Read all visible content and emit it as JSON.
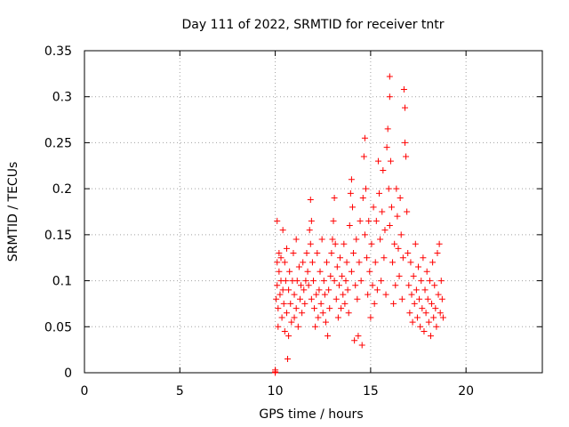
{
  "chart_data": {
    "type": "scatter",
    "title": "Day 111 of 2022, SRMTID for receiver tntr",
    "xlabel": "GPS time / hours",
    "ylabel": "SRMTID / TECUs",
    "xlim": [
      0,
      24
    ],
    "ylim": [
      0,
      0.35
    ],
    "xticks": [
      0,
      5,
      10,
      15,
      20
    ],
    "xtick_labels": [
      "0",
      "5",
      "10",
      "15",
      "20"
    ],
    "yticks": [
      0,
      0.05,
      0.1,
      0.15,
      0.2,
      0.25,
      0.3,
      0.35
    ],
    "ytick_labels": [
      "0",
      "0.05",
      "0.1",
      "0.15",
      "0.2",
      "0.25",
      "0.3",
      "0.35"
    ],
    "grid": true,
    "marker": "+",
    "color": "#ff0000",
    "series": [
      {
        "name": "SRMTID",
        "points": [
          [
            10.0,
            0.001
          ],
          [
            10.0,
            0.003
          ],
          [
            10.0,
            0.0
          ],
          [
            10.05,
            0.08
          ],
          [
            10.1,
            0.165
          ],
          [
            10.1,
            0.12
          ],
          [
            10.1,
            0.095
          ],
          [
            10.15,
            0.07
          ],
          [
            10.15,
            0.05
          ],
          [
            10.2,
            0.13
          ],
          [
            10.2,
            0.11
          ],
          [
            10.25,
            0.085
          ],
          [
            10.3,
            0.125
          ],
          [
            10.3,
            0.1
          ],
          [
            10.35,
            0.06
          ],
          [
            10.4,
            0.155
          ],
          [
            10.4,
            0.09
          ],
          [
            10.45,
            0.075
          ],
          [
            10.5,
            0.12
          ],
          [
            10.5,
            0.045
          ],
          [
            10.55,
            0.1
          ],
          [
            10.6,
            0.135
          ],
          [
            10.6,
            0.065
          ],
          [
            10.65,
            0.015
          ],
          [
            10.7,
            0.09
          ],
          [
            10.7,
            0.04
          ],
          [
            10.75,
            0.11
          ],
          [
            10.8,
            0.075
          ],
          [
            10.85,
            0.055
          ],
          [
            10.9,
            0.1
          ],
          [
            10.95,
            0.13
          ],
          [
            11.0,
            0.085
          ],
          [
            11.0,
            0.06
          ],
          [
            11.1,
            0.145
          ],
          [
            11.1,
            0.07
          ],
          [
            11.15,
            0.1
          ],
          [
            11.2,
            0.05
          ],
          [
            11.25,
            0.115
          ],
          [
            11.3,
            0.08
          ],
          [
            11.35,
            0.095
          ],
          [
            11.4,
            0.065
          ],
          [
            11.45,
            0.12
          ],
          [
            11.5,
            0.09
          ],
          [
            11.55,
            0.075
          ],
          [
            11.6,
            0.1
          ],
          [
            11.65,
            0.13
          ],
          [
            11.7,
            0.11
          ],
          [
            11.75,
            0.095
          ],
          [
            11.8,
            0.155
          ],
          [
            11.85,
            0.188
          ],
          [
            11.85,
            0.14
          ],
          [
            11.9,
            0.165
          ],
          [
            11.9,
            0.08
          ],
          [
            11.95,
            0.12
          ],
          [
            12.0,
            0.1
          ],
          [
            12.05,
            0.07
          ],
          [
            12.1,
            0.05
          ],
          [
            12.15,
            0.085
          ],
          [
            12.2,
            0.13
          ],
          [
            12.25,
            0.06
          ],
          [
            12.3,
            0.09
          ],
          [
            12.35,
            0.11
          ],
          [
            12.4,
            0.075
          ],
          [
            12.45,
            0.145
          ],
          [
            12.5,
            0.065
          ],
          [
            12.55,
            0.1
          ],
          [
            12.6,
            0.085
          ],
          [
            12.65,
            0.055
          ],
          [
            12.7,
            0.12
          ],
          [
            12.75,
            0.04
          ],
          [
            12.8,
            0.09
          ],
          [
            12.85,
            0.07
          ],
          [
            12.9,
            0.105
          ],
          [
            12.95,
            0.13
          ],
          [
            13.0,
            0.145
          ],
          [
            13.05,
            0.165
          ],
          [
            13.1,
            0.19
          ],
          [
            13.1,
            0.1
          ],
          [
            13.15,
            0.14
          ],
          [
            13.2,
            0.08
          ],
          [
            13.25,
            0.115
          ],
          [
            13.3,
            0.06
          ],
          [
            13.35,
            0.095
          ],
          [
            13.4,
            0.125
          ],
          [
            13.45,
            0.07
          ],
          [
            13.5,
            0.105
          ],
          [
            13.55,
            0.085
          ],
          [
            13.6,
            0.14
          ],
          [
            13.65,
            0.075
          ],
          [
            13.7,
            0.1
          ],
          [
            13.75,
            0.12
          ],
          [
            13.8,
            0.09
          ],
          [
            13.85,
            0.065
          ],
          [
            13.9,
            0.16
          ],
          [
            13.95,
            0.195
          ],
          [
            14.0,
            0.21
          ],
          [
            14.0,
            0.11
          ],
          [
            14.05,
            0.18
          ],
          [
            14.1,
            0.13
          ],
          [
            14.15,
            0.035
          ],
          [
            14.2,
            0.095
          ],
          [
            14.25,
            0.145
          ],
          [
            14.3,
            0.08
          ],
          [
            14.35,
            0.04
          ],
          [
            14.4,
            0.12
          ],
          [
            14.45,
            0.165
          ],
          [
            14.5,
            0.1
          ],
          [
            14.55,
            0.03
          ],
          [
            14.6,
            0.19
          ],
          [
            14.65,
            0.235
          ],
          [
            14.7,
            0.255
          ],
          [
            14.7,
            0.15
          ],
          [
            14.75,
            0.2
          ],
          [
            14.8,
            0.125
          ],
          [
            14.85,
            0.085
          ],
          [
            14.9,
            0.165
          ],
          [
            14.95,
            0.11
          ],
          [
            15.0,
            0.06
          ],
          [
            15.05,
            0.14
          ],
          [
            15.1,
            0.095
          ],
          [
            15.15,
            0.18
          ],
          [
            15.2,
            0.075
          ],
          [
            15.25,
            0.12
          ],
          [
            15.3,
            0.165
          ],
          [
            15.35,
            0.09
          ],
          [
            15.4,
            0.23
          ],
          [
            15.45,
            0.195
          ],
          [
            15.5,
            0.145
          ],
          [
            15.55,
            0.1
          ],
          [
            15.6,
            0.175
          ],
          [
            15.65,
            0.22
          ],
          [
            15.7,
            0.125
          ],
          [
            15.75,
            0.155
          ],
          [
            15.8,
            0.085
          ],
          [
            15.85,
            0.245
          ],
          [
            15.9,
            0.265
          ],
          [
            15.95,
            0.2
          ],
          [
            16.0,
            0.322
          ],
          [
            16.0,
            0.3
          ],
          [
            16.0,
            0.16
          ],
          [
            16.05,
            0.23
          ],
          [
            16.1,
            0.18
          ],
          [
            16.15,
            0.12
          ],
          [
            16.2,
            0.075
          ],
          [
            16.25,
            0.14
          ],
          [
            16.3,
            0.095
          ],
          [
            16.35,
            0.2
          ],
          [
            16.4,
            0.17
          ],
          [
            16.45,
            0.135
          ],
          [
            16.5,
            0.105
          ],
          [
            16.55,
            0.19
          ],
          [
            16.6,
            0.15
          ],
          [
            16.65,
            0.08
          ],
          [
            16.7,
            0.125
          ],
          [
            16.75,
            0.308
          ],
          [
            16.8,
            0.288
          ],
          [
            16.8,
            0.25
          ],
          [
            16.85,
            0.235
          ],
          [
            16.9,
            0.175
          ],
          [
            16.95,
            0.13
          ],
          [
            17.0,
            0.095
          ],
          [
            17.05,
            0.065
          ],
          [
            17.1,
            0.12
          ],
          [
            17.15,
            0.085
          ],
          [
            17.2,
            0.055
          ],
          [
            17.25,
            0.105
          ],
          [
            17.3,
            0.075
          ],
          [
            17.35,
            0.14
          ],
          [
            17.4,
            0.09
          ],
          [
            17.45,
            0.06
          ],
          [
            17.5,
            0.115
          ],
          [
            17.55,
            0.08
          ],
          [
            17.6,
            0.05
          ],
          [
            17.65,
            0.1
          ],
          [
            17.7,
            0.07
          ],
          [
            17.75,
            0.125
          ],
          [
            17.8,
            0.045
          ],
          [
            17.85,
            0.09
          ],
          [
            17.9,
            0.065
          ],
          [
            17.95,
            0.11
          ],
          [
            18.0,
            0.08
          ],
          [
            18.05,
            0.055
          ],
          [
            18.1,
            0.1
          ],
          [
            18.15,
            0.04
          ],
          [
            18.2,
            0.075
          ],
          [
            18.25,
            0.12
          ],
          [
            18.3,
            0.06
          ],
          [
            18.35,
            0.095
          ],
          [
            18.4,
            0.07
          ],
          [
            18.45,
            0.05
          ],
          [
            18.5,
            0.13
          ],
          [
            18.55,
            0.085
          ],
          [
            18.6,
            0.14
          ],
          [
            18.65,
            0.065
          ],
          [
            18.7,
            0.1
          ],
          [
            18.75,
            0.08
          ],
          [
            18.8,
            0.06
          ]
        ]
      }
    ]
  }
}
